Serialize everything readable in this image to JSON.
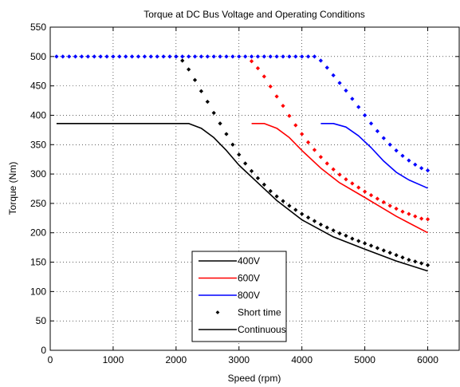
{
  "chart_data": {
    "type": "line",
    "title": "Torque at DC Bus Voltage and Operating Conditions",
    "xlabel": "Speed (rpm)",
    "ylabel": "Torque (Nm)",
    "xlim": [
      0,
      6500
    ],
    "ylim": [
      0,
      550
    ],
    "xticks": [
      0,
      1000,
      2000,
      3000,
      4000,
      5000,
      6000
    ],
    "yticks": [
      0,
      50,
      100,
      150,
      200,
      250,
      300,
      350,
      400,
      450,
      500,
      550
    ],
    "grid": true,
    "legend_position": "bottom-center",
    "colors": {
      "400V": "#000000",
      "600V": "#ff0000",
      "800V": "#0000ff"
    },
    "legend": [
      {
        "label": "400V",
        "style": "line",
        "color": "#000000"
      },
      {
        "label": "600V",
        "style": "line",
        "color": "#ff0000"
      },
      {
        "label": "800V",
        "style": "line",
        "color": "#0000ff"
      },
      {
        "label": "Short time",
        "style": "dot",
        "color": "#000000"
      },
      {
        "label": "Continuous",
        "style": "line",
        "color": "#000000"
      }
    ],
    "series": [
      {
        "voltage": "400V",
        "mode": "Continuous",
        "color": "#000000",
        "style": "line",
        "x": [
          100,
          2200,
          2400,
          2600,
          2800,
          3000,
          3300,
          3600,
          4000,
          4500,
          5000,
          5500,
          6000
        ],
        "y": [
          386,
          386,
          378,
          362,
          340,
          315,
          285,
          255,
          222,
          193,
          172,
          152,
          135
        ]
      },
      {
        "voltage": "600V",
        "mode": "Continuous",
        "color": "#ff0000",
        "style": "line",
        "x": [
          3200,
          3400,
          3600,
          3800,
          4000,
          4300,
          4600,
          5000,
          5500,
          6000
        ],
        "y": [
          386,
          386,
          378,
          362,
          340,
          310,
          285,
          260,
          228,
          200
        ]
      },
      {
        "voltage": "800V",
        "mode": "Continuous",
        "color": "#0000ff",
        "style": "line",
        "x": [
          4300,
          4500,
          4700,
          4900,
          5100,
          5300,
          5500,
          5700,
          6000
        ],
        "y": [
          386,
          386,
          380,
          365,
          345,
          322,
          303,
          290,
          276
        ]
      },
      {
        "voltage": "400V",
        "mode": "Short time",
        "color": "#000000",
        "style": "dots",
        "x": [
          2000,
          2100,
          2200,
          2300,
          2400,
          2500,
          2600,
          2700,
          2800,
          2900,
          3000,
          3100,
          3200,
          3300,
          3400,
          3500,
          3600,
          3700,
          3800,
          3900,
          4000,
          4100,
          4200,
          4300,
          4400,
          4500,
          4600,
          4700,
          4800,
          4900,
          5000,
          5100,
          5200,
          5300,
          5400,
          5500,
          5600,
          5700,
          5800,
          5900,
          6000
        ],
        "y": [
          500,
          493,
          478,
          460,
          441,
          423,
          404,
          386,
          368,
          350,
          333,
          318,
          305,
          293,
          282,
          271,
          262,
          254,
          246,
          239,
          232,
          226,
          220,
          214,
          209,
          204,
          199,
          195,
          190,
          186,
          182,
          178,
          174,
          170,
          166,
          162,
          158,
          154,
          151,
          148,
          145
        ]
      },
      {
        "voltage": "600V",
        "mode": "Short time",
        "color": "#ff0000",
        "style": "dots",
        "x": [
          3200,
          3300,
          3400,
          3500,
          3600,
          3700,
          3800,
          3900,
          4000,
          4100,
          4200,
          4300,
          4400,
          4500,
          4600,
          4700,
          4800,
          4900,
          5000,
          5100,
          5200,
          5300,
          5400,
          5500,
          5600,
          5700,
          5800,
          5900,
          6000
        ],
        "y": [
          492,
          480,
          466,
          449,
          432,
          416,
          399,
          383,
          368,
          354,
          341,
          329,
          318,
          308,
          299,
          291,
          284,
          277,
          270,
          264,
          258,
          252,
          246,
          241,
          236,
          232,
          228,
          224,
          223
        ]
      },
      {
        "voltage": "800V",
        "mode": "Short time",
        "color": "#0000ff",
        "style": "dots",
        "x": [
          100,
          200,
          300,
          400,
          500,
          600,
          700,
          800,
          900,
          1000,
          1100,
          1200,
          1300,
          1400,
          1500,
          1600,
          1700,
          1800,
          1900,
          2000,
          2100,
          2200,
          2300,
          2400,
          2500,
          2600,
          2700,
          2800,
          2900,
          3000,
          3100,
          3200,
          3300,
          3400,
          3500,
          3600,
          3700,
          3800,
          3900,
          4000,
          4100,
          4200,
          4300,
          4400,
          4500,
          4600,
          4700,
          4800,
          4900,
          5000,
          5100,
          5200,
          5300,
          5400,
          5500,
          5600,
          5700,
          5800,
          5900,
          6000
        ],
        "y": [
          500,
          500,
          500,
          500,
          500,
          500,
          500,
          500,
          500,
          500,
          500,
          500,
          500,
          500,
          500,
          500,
          500,
          500,
          500,
          500,
          500,
          500,
          500,
          500,
          500,
          500,
          500,
          500,
          500,
          500,
          500,
          500,
          500,
          500,
          500,
          500,
          500,
          500,
          500,
          500,
          500,
          500,
          493,
          481,
          468,
          455,
          442,
          428,
          414,
          400,
          386,
          373,
          361,
          350,
          340,
          331,
          323,
          316,
          310,
          306
        ]
      }
    ]
  }
}
